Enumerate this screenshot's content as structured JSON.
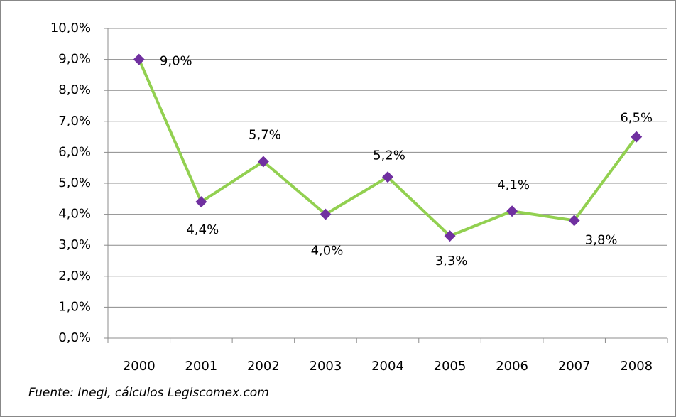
{
  "chart_data": {
    "type": "line",
    "categories": [
      "2000",
      "2001",
      "2002",
      "2003",
      "2004",
      "2005",
      "2006",
      "2007",
      "2008"
    ],
    "series": [
      {
        "color": "#92d050",
        "marker_color": "#7030a0",
        "values": [
          9.0,
          4.4,
          5.7,
          4.0,
          5.2,
          3.3,
          4.1,
          3.8,
          6.5
        ],
        "value_labels": [
          "9,0%",
          "4,4%",
          "5,7%",
          "4,0%",
          "5,2%",
          "3,3%",
          "4,1%",
          "3,8%",
          "6,5%"
        ]
      }
    ],
    "ylim": [
      0,
      10
    ],
    "yticks": [
      {
        "value": 0,
        "label": "0,0%"
      },
      {
        "value": 1,
        "label": "1,0%"
      },
      {
        "value": 2,
        "label": "2,0%"
      },
      {
        "value": 3,
        "label": "3,0%"
      },
      {
        "value": 4,
        "label": "4,0%"
      },
      {
        "value": 5,
        "label": "5,0%"
      },
      {
        "value": 6,
        "label": "6,0%"
      },
      {
        "value": 7,
        "label": "7,0%"
      },
      {
        "value": 8,
        "label": "8,0%"
      },
      {
        "value": 9,
        "label": "9,0%"
      },
      {
        "value": 10,
        "label": "10,0%"
      }
    ],
    "grid": true,
    "source": "Fuente: Inegi, cálculos Legiscomex.com"
  }
}
